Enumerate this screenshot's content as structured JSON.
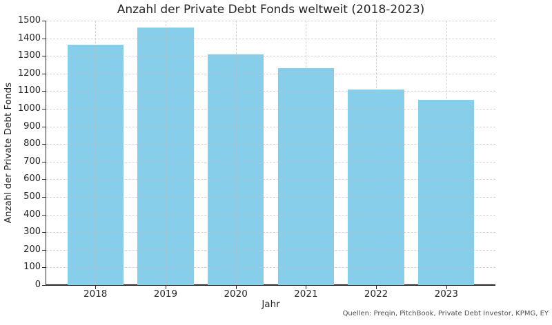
{
  "chart_data": {
    "type": "bar",
    "title": "Anzahl der Private Debt Fonds weltweit (2018-2023)",
    "xlabel": "Jahr",
    "ylabel": "Anzahl der Private Debt Fonds",
    "categories": [
      "2018",
      "2019",
      "2020",
      "2021",
      "2022",
      "2023"
    ],
    "values": [
      1365,
      1460,
      1310,
      1230,
      1110,
      1050
    ],
    "ylim": [
      0,
      1500
    ],
    "ytick_step": 100,
    "grid": true,
    "grid_style": "dashed",
    "legend_position": "none",
    "bar_color": "#87CEEB",
    "axis_color": "#262626",
    "grid_color": "#bfbfbf",
    "source_note": "Quellen: Preqin, PitchBook, Private Debt Investor, KPMG, EY"
  }
}
